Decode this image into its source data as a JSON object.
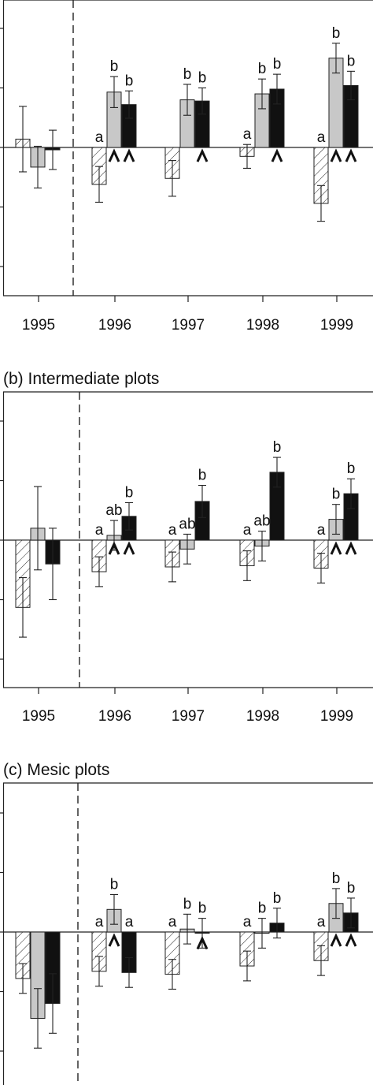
{
  "chart_data": [
    {
      "type": "bar",
      "title": "",
      "categories": [
        "1995",
        "1996",
        "1997",
        "1998",
        "1999"
      ],
      "ylim": [
        -2.5,
        2.5
      ],
      "series": [
        {
          "pattern": "hatched",
          "color": "#ffffff",
          "values": [
            0.14,
            -0.62,
            -0.52,
            -0.15,
            -0.94
          ],
          "err": [
            0.55,
            0.3,
            0.3,
            0.2,
            0.3
          ]
        },
        {
          "pattern": "gray",
          "color": "#c8c8c8",
          "values": [
            -0.33,
            0.93,
            0.8,
            0.9,
            1.5
          ],
          "err": [
            0.35,
            0.26,
            0.26,
            0.25,
            0.25
          ]
        },
        {
          "pattern": "black",
          "color": "#111111",
          "values": [
            -0.04,
            0.72,
            0.78,
            0.98,
            1.04
          ],
          "err": [
            0.33,
            0.23,
            0.22,
            0.25,
            0.24
          ]
        }
      ],
      "letters": [
        [
          null,
          null,
          null
        ],
        [
          "a",
          "b",
          "b"
        ],
        [
          null,
          "b",
          "b"
        ],
        [
          "a",
          "b",
          "b"
        ],
        [
          "a",
          "b",
          "b"
        ]
      ],
      "carets": [
        [
          false,
          false,
          false
        ],
        [
          false,
          true,
          true
        ],
        [
          false,
          false,
          true
        ],
        [
          false,
          false,
          true
        ],
        [
          false,
          true,
          true
        ]
      ],
      "grid": false,
      "divider_after": "1995"
    },
    {
      "type": "bar",
      "title": "(b) Intermediate plots",
      "categories": [
        "1995",
        "1996",
        "1997",
        "1998",
        "1999"
      ],
      "ylim": [
        -2.5,
        2.5
      ],
      "series": [
        {
          "pattern": "hatched",
          "color": "#ffffff",
          "values": [
            -1.13,
            -0.53,
            -0.45,
            -0.43,
            -0.47
          ],
          "err": [
            0.5,
            0.25,
            0.25,
            0.25,
            0.25
          ]
        },
        {
          "pattern": "gray",
          "color": "#c8c8c8",
          "values": [
            0.2,
            0.08,
            -0.15,
            -0.1,
            0.35
          ],
          "err": [
            0.7,
            0.25,
            0.25,
            0.25,
            0.25
          ]
        },
        {
          "pattern": "black",
          "color": "#111111",
          "values": [
            -0.4,
            0.4,
            0.65,
            1.14,
            0.78
          ],
          "err": [
            0.6,
            0.23,
            0.27,
            0.25,
            0.25
          ]
        }
      ],
      "letters": [
        [
          null,
          null,
          null
        ],
        [
          "a",
          "ab",
          "b"
        ],
        [
          "a",
          "ab",
          "b"
        ],
        [
          "a",
          "ab",
          "b"
        ],
        [
          "a",
          "b",
          "b"
        ]
      ],
      "carets": [
        [
          false,
          false,
          false
        ],
        [
          false,
          true,
          true
        ],
        [
          false,
          false,
          false
        ],
        [
          false,
          false,
          false
        ],
        [
          false,
          true,
          true
        ]
      ],
      "grid": false,
      "divider_after": "1995"
    },
    {
      "type": "bar",
      "title": "(c) Mesic plots",
      "categories": [
        "1995",
        "1996",
        "1997",
        "1998",
        "1999"
      ],
      "ylim": [
        -2.5,
        2.5
      ],
      "series": [
        {
          "pattern": "hatched",
          "color": "#ffffff",
          "values": [
            -0.78,
            -0.66,
            -0.71,
            -0.57,
            -0.48
          ],
          "err": [
            0.25,
            0.25,
            0.25,
            0.25,
            0.25
          ]
        },
        {
          "pattern": "gray",
          "color": "#c8c8c8",
          "values": [
            -1.45,
            0.38,
            0.05,
            -0.02,
            0.48
          ],
          "err": [
            0.5,
            0.25,
            0.25,
            0.25,
            0.25
          ]
        },
        {
          "pattern": "black",
          "color": "#111111",
          "values": [
            -1.2,
            -0.68,
            -0.02,
            0.15,
            0.32
          ],
          "err": [
            0.5,
            0.25,
            0.25,
            0.25,
            0.25
          ]
        }
      ],
      "letters": [
        [
          null,
          null,
          null
        ],
        [
          "a",
          "b",
          "a"
        ],
        [
          "a",
          "b",
          "b"
        ],
        [
          "a",
          "b",
          "b"
        ],
        [
          "a",
          "b",
          "b"
        ]
      ],
      "carets": [
        [
          false,
          false,
          false
        ],
        [
          false,
          true,
          false
        ],
        [
          false,
          false,
          true
        ],
        [
          false,
          false,
          false
        ],
        [
          false,
          true,
          true
        ]
      ],
      "grid": false,
      "divider_after": "1995"
    }
  ]
}
